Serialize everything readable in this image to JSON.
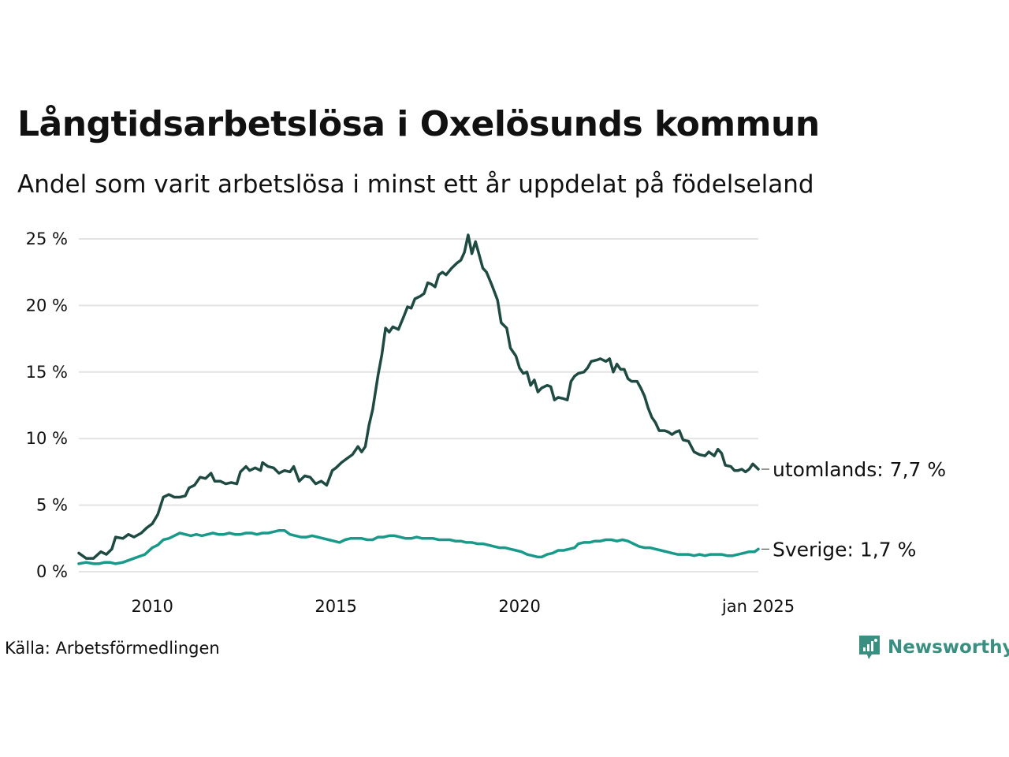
{
  "title": "Långtidsarbetslösa i Oxelösunds kommun",
  "subtitle": "Andel som varit arbetslösa i minst ett år uppdelat på födelseland",
  "source": "Källa: Arbetsförmedlingen",
  "brand": {
    "name": "Newsworthy",
    "color": "#3a8f80"
  },
  "chart_data": {
    "type": "line",
    "x_ticks": [
      {
        "value": 2010.0,
        "label": "2010"
      },
      {
        "value": 2015.0,
        "label": "2015"
      },
      {
        "value": 2020.0,
        "label": "2020"
      },
      {
        "value": 2025.0,
        "label": "jan 2025"
      }
    ],
    "y_ticks": [
      {
        "value": 0,
        "label": "0 %"
      },
      {
        "value": 5,
        "label": "5 %"
      },
      {
        "value": 10,
        "label": "10 %"
      },
      {
        "value": 15,
        "label": "15 %"
      },
      {
        "value": 20,
        "label": "20 %"
      },
      {
        "value": 25,
        "label": "25 %"
      }
    ],
    "xlim": [
      2008.0,
      2025.0
    ],
    "ylim": [
      0,
      25
    ],
    "grid": "horizontal",
    "series": [
      {
        "name": "utomlands",
        "end_label": "utomlands: 7,7 %",
        "color": "#1f4a42",
        "points": [
          [
            2008.0,
            1.4
          ],
          [
            2008.2,
            1.0
          ],
          [
            2008.4,
            1.0
          ],
          [
            2008.6,
            1.5
          ],
          [
            2008.75,
            1.3
          ],
          [
            2008.9,
            1.7
          ],
          [
            2009.0,
            2.6
          ],
          [
            2009.2,
            2.5
          ],
          [
            2009.35,
            2.8
          ],
          [
            2009.5,
            2.6
          ],
          [
            2009.7,
            2.9
          ],
          [
            2009.85,
            3.3
          ],
          [
            2010.0,
            3.6
          ],
          [
            2010.15,
            4.3
          ],
          [
            2010.3,
            5.6
          ],
          [
            2010.45,
            5.8
          ],
          [
            2010.6,
            5.6
          ],
          [
            2010.75,
            5.6
          ],
          [
            2010.9,
            5.7
          ],
          [
            2011.0,
            6.3
          ],
          [
            2011.15,
            6.5
          ],
          [
            2011.3,
            7.1
          ],
          [
            2011.45,
            7.0
          ],
          [
            2011.6,
            7.4
          ],
          [
            2011.7,
            6.8
          ],
          [
            2011.85,
            6.8
          ],
          [
            2012.0,
            6.6
          ],
          [
            2012.15,
            6.7
          ],
          [
            2012.3,
            6.6
          ],
          [
            2012.4,
            7.5
          ],
          [
            2012.55,
            7.9
          ],
          [
            2012.65,
            7.6
          ],
          [
            2012.8,
            7.8
          ],
          [
            2012.95,
            7.6
          ],
          [
            2013.0,
            8.2
          ],
          [
            2013.15,
            7.9
          ],
          [
            2013.3,
            7.8
          ],
          [
            2013.45,
            7.4
          ],
          [
            2013.6,
            7.6
          ],
          [
            2013.75,
            7.5
          ],
          [
            2013.85,
            7.9
          ],
          [
            2014.0,
            6.8
          ],
          [
            2014.15,
            7.2
          ],
          [
            2014.3,
            7.1
          ],
          [
            2014.45,
            6.6
          ],
          [
            2014.6,
            6.8
          ],
          [
            2014.75,
            6.5
          ],
          [
            2014.9,
            7.6
          ],
          [
            2015.0,
            7.8
          ],
          [
            2015.15,
            8.2
          ],
          [
            2015.3,
            8.5
          ],
          [
            2015.45,
            8.8
          ],
          [
            2015.6,
            9.4
          ],
          [
            2015.7,
            9.0
          ],
          [
            2015.8,
            9.4
          ],
          [
            2015.9,
            11.0
          ],
          [
            2016.0,
            12.2
          ],
          [
            2016.15,
            14.8
          ],
          [
            2016.25,
            16.3
          ],
          [
            2016.35,
            18.3
          ],
          [
            2016.45,
            18.0
          ],
          [
            2016.55,
            18.4
          ],
          [
            2016.7,
            18.2
          ],
          [
            2016.85,
            19.2
          ],
          [
            2016.95,
            19.9
          ],
          [
            2017.05,
            19.8
          ],
          [
            2017.15,
            20.5
          ],
          [
            2017.3,
            20.7
          ],
          [
            2017.4,
            20.9
          ],
          [
            2017.5,
            21.7
          ],
          [
            2017.6,
            21.6
          ],
          [
            2017.7,
            21.4
          ],
          [
            2017.8,
            22.3
          ],
          [
            2017.9,
            22.5
          ],
          [
            2018.0,
            22.3
          ],
          [
            2018.15,
            22.8
          ],
          [
            2018.3,
            23.2
          ],
          [
            2018.4,
            23.4
          ],
          [
            2018.5,
            24.0
          ],
          [
            2018.6,
            25.3
          ],
          [
            2018.7,
            23.9
          ],
          [
            2018.8,
            24.8
          ],
          [
            2018.9,
            23.8
          ],
          [
            2019.0,
            22.8
          ],
          [
            2019.1,
            22.5
          ],
          [
            2019.25,
            21.5
          ],
          [
            2019.4,
            20.4
          ],
          [
            2019.5,
            18.7
          ],
          [
            2019.65,
            18.3
          ],
          [
            2019.75,
            16.8
          ],
          [
            2019.9,
            16.2
          ],
          [
            2020.0,
            15.3
          ],
          [
            2020.1,
            14.9
          ],
          [
            2020.2,
            15.0
          ],
          [
            2020.3,
            14.0
          ],
          [
            2020.4,
            14.4
          ],
          [
            2020.5,
            13.5
          ],
          [
            2020.6,
            13.8
          ],
          [
            2020.75,
            14.0
          ],
          [
            2020.85,
            13.9
          ],
          [
            2020.95,
            12.9
          ],
          [
            2021.05,
            13.1
          ],
          [
            2021.2,
            13.0
          ],
          [
            2021.3,
            12.9
          ],
          [
            2021.4,
            14.3
          ],
          [
            2021.5,
            14.7
          ],
          [
            2021.6,
            14.9
          ],
          [
            2021.75,
            15.0
          ],
          [
            2021.85,
            15.3
          ],
          [
            2021.95,
            15.8
          ],
          [
            2022.1,
            15.9
          ],
          [
            2022.2,
            16.0
          ],
          [
            2022.35,
            15.8
          ],
          [
            2022.45,
            16.0
          ],
          [
            2022.55,
            15.0
          ],
          [
            2022.65,
            15.6
          ],
          [
            2022.75,
            15.2
          ],
          [
            2022.85,
            15.2
          ],
          [
            2022.95,
            14.5
          ],
          [
            2023.05,
            14.3
          ],
          [
            2023.2,
            14.3
          ],
          [
            2023.3,
            13.8
          ],
          [
            2023.4,
            13.2
          ],
          [
            2023.5,
            12.3
          ],
          [
            2023.6,
            11.6
          ],
          [
            2023.7,
            11.2
          ],
          [
            2023.8,
            10.6
          ],
          [
            2023.95,
            10.6
          ],
          [
            2024.05,
            10.5
          ],
          [
            2024.15,
            10.3
          ],
          [
            2024.25,
            10.5
          ],
          [
            2024.35,
            10.6
          ],
          [
            2024.45,
            9.9
          ],
          [
            2024.6,
            9.8
          ],
          [
            2024.75,
            9.0
          ],
          [
            2024.9,
            8.8
          ],
          [
            2025.05,
            8.7
          ],
          [
            2025.15,
            9.0
          ],
          [
            2025.3,
            8.7
          ],
          [
            2025.4,
            9.2
          ],
          [
            2025.5,
            8.9
          ],
          [
            2025.6,
            8.0
          ],
          [
            2025.75,
            7.9
          ],
          [
            2025.85,
            7.6
          ],
          [
            2025.95,
            7.6
          ],
          [
            2026.05,
            7.7
          ],
          [
            2026.15,
            7.5
          ],
          [
            2026.25,
            7.7
          ],
          [
            2026.35,
            8.1
          ],
          [
            2026.5,
            7.7
          ]
        ]
      },
      {
        "name": "Sverige",
        "end_label": "Sverige: 1,7 %",
        "color": "#19998a",
        "points": [
          [
            2008.0,
            0.6
          ],
          [
            2008.2,
            0.7
          ],
          [
            2008.4,
            0.6
          ],
          [
            2008.55,
            0.6
          ],
          [
            2008.7,
            0.7
          ],
          [
            2008.85,
            0.7
          ],
          [
            2009.0,
            0.6
          ],
          [
            2009.2,
            0.7
          ],
          [
            2009.4,
            0.9
          ],
          [
            2009.6,
            1.1
          ],
          [
            2009.8,
            1.3
          ],
          [
            2010.0,
            1.8
          ],
          [
            2010.15,
            2.0
          ],
          [
            2010.3,
            2.4
          ],
          [
            2010.45,
            2.5
          ],
          [
            2010.6,
            2.7
          ],
          [
            2010.75,
            2.9
          ],
          [
            2010.9,
            2.8
          ],
          [
            2011.05,
            2.7
          ],
          [
            2011.2,
            2.8
          ],
          [
            2011.35,
            2.7
          ],
          [
            2011.5,
            2.8
          ],
          [
            2011.65,
            2.9
          ],
          [
            2011.8,
            2.8
          ],
          [
            2011.95,
            2.8
          ],
          [
            2012.1,
            2.9
          ],
          [
            2012.25,
            2.8
          ],
          [
            2012.4,
            2.8
          ],
          [
            2012.55,
            2.9
          ],
          [
            2012.7,
            2.9
          ],
          [
            2012.85,
            2.8
          ],
          [
            2013.0,
            2.9
          ],
          [
            2013.15,
            2.9
          ],
          [
            2013.3,
            3.0
          ],
          [
            2013.45,
            3.1
          ],
          [
            2013.6,
            3.1
          ],
          [
            2013.75,
            2.8
          ],
          [
            2013.9,
            2.7
          ],
          [
            2014.05,
            2.6
          ],
          [
            2014.2,
            2.6
          ],
          [
            2014.35,
            2.7
          ],
          [
            2014.5,
            2.6
          ],
          [
            2014.65,
            2.5
          ],
          [
            2014.8,
            2.4
          ],
          [
            2014.95,
            2.3
          ],
          [
            2015.1,
            2.2
          ],
          [
            2015.25,
            2.4
          ],
          [
            2015.4,
            2.5
          ],
          [
            2015.55,
            2.5
          ],
          [
            2015.7,
            2.5
          ],
          [
            2015.85,
            2.4
          ],
          [
            2016.0,
            2.4
          ],
          [
            2016.15,
            2.6
          ],
          [
            2016.3,
            2.6
          ],
          [
            2016.45,
            2.7
          ],
          [
            2016.6,
            2.7
          ],
          [
            2016.75,
            2.6
          ],
          [
            2016.9,
            2.5
          ],
          [
            2017.05,
            2.5
          ],
          [
            2017.2,
            2.6
          ],
          [
            2017.35,
            2.5
          ],
          [
            2017.5,
            2.5
          ],
          [
            2017.65,
            2.5
          ],
          [
            2017.8,
            2.4
          ],
          [
            2017.95,
            2.4
          ],
          [
            2018.1,
            2.4
          ],
          [
            2018.25,
            2.3
          ],
          [
            2018.4,
            2.3
          ],
          [
            2018.55,
            2.2
          ],
          [
            2018.7,
            2.2
          ],
          [
            2018.85,
            2.1
          ],
          [
            2019.0,
            2.1
          ],
          [
            2019.15,
            2.0
          ],
          [
            2019.3,
            1.9
          ],
          [
            2019.45,
            1.8
          ],
          [
            2019.6,
            1.8
          ],
          [
            2019.75,
            1.7
          ],
          [
            2019.9,
            1.6
          ],
          [
            2020.05,
            1.5
          ],
          [
            2020.2,
            1.3
          ],
          [
            2020.35,
            1.2
          ],
          [
            2020.5,
            1.1
          ],
          [
            2020.6,
            1.1
          ],
          [
            2020.75,
            1.3
          ],
          [
            2020.9,
            1.4
          ],
          [
            2021.05,
            1.6
          ],
          [
            2021.2,
            1.6
          ],
          [
            2021.35,
            1.7
          ],
          [
            2021.5,
            1.8
          ],
          [
            2021.6,
            2.1
          ],
          [
            2021.75,
            2.2
          ],
          [
            2021.9,
            2.2
          ],
          [
            2022.05,
            2.3
          ],
          [
            2022.2,
            2.3
          ],
          [
            2022.35,
            2.4
          ],
          [
            2022.5,
            2.4
          ],
          [
            2022.65,
            2.3
          ],
          [
            2022.8,
            2.4
          ],
          [
            2022.95,
            2.3
          ],
          [
            2023.1,
            2.1
          ],
          [
            2023.25,
            1.9
          ],
          [
            2023.4,
            1.8
          ],
          [
            2023.55,
            1.8
          ],
          [
            2023.7,
            1.7
          ],
          [
            2023.85,
            1.6
          ],
          [
            2024.0,
            1.5
          ],
          [
            2024.15,
            1.4
          ],
          [
            2024.3,
            1.3
          ],
          [
            2024.45,
            1.3
          ],
          [
            2024.6,
            1.3
          ],
          [
            2024.75,
            1.2
          ],
          [
            2024.9,
            1.3
          ],
          [
            2025.05,
            1.2
          ],
          [
            2025.2,
            1.3
          ],
          [
            2025.35,
            1.3
          ],
          [
            2025.5,
            1.3
          ],
          [
            2025.65,
            1.2
          ],
          [
            2025.8,
            1.2
          ],
          [
            2025.95,
            1.3
          ],
          [
            2026.1,
            1.4
          ],
          [
            2026.25,
            1.5
          ],
          [
            2026.4,
            1.5
          ],
          [
            2026.5,
            1.7
          ]
        ]
      }
    ]
  }
}
